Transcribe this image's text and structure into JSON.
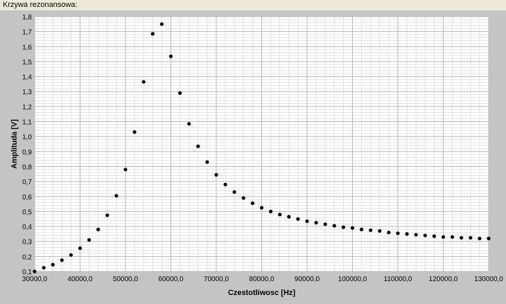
{
  "panel": {
    "title": "Krzywa rezonansowa:"
  },
  "colors": {
    "plot_bg": "#ffffff",
    "frame": "#c4c4c4",
    "grid_major": "#b8b8b8",
    "grid_minor": "#e2e2e2",
    "point": "#000000"
  },
  "chart_data": {
    "type": "scatter",
    "xlabel": "Czestotliwosc [Hz]",
    "ylabel": "Amplituda [V]",
    "xlim": [
      30000,
      130000
    ],
    "ylim": [
      0.1,
      1.8
    ],
    "xticks": [
      30000,
      40000,
      50000,
      60000,
      70000,
      80000,
      90000,
      100000,
      110000,
      120000,
      130000
    ],
    "xtick_labels": [
      "30000,0",
      "40000,0",
      "50000,0",
      "60000,0",
      "70000,0",
      "80000,0",
      "90000,0",
      "100000,0",
      "110000,0",
      "120000,0",
      "130000,0"
    ],
    "yticks": [
      0.1,
      0.2,
      0.3,
      0.4,
      0.5,
      0.6,
      0.7,
      0.8,
      0.9,
      1.0,
      1.1,
      1.2,
      1.3,
      1.4,
      1.5,
      1.6,
      1.7,
      1.8
    ],
    "ytick_labels": [
      "0,1",
      "0,2",
      "0,3",
      "0,4",
      "0,5",
      "0,6",
      "0,7",
      "0,8",
      "0,9",
      "1,0",
      "1,1",
      "1,2",
      "1,3",
      "1,4",
      "1,5",
      "1,6",
      "1,7",
      "1,8"
    ],
    "grid": true,
    "points": [
      [
        30000,
        0.1
      ],
      [
        32000,
        0.125
      ],
      [
        34000,
        0.145
      ],
      [
        36000,
        0.175
      ],
      [
        38000,
        0.21
      ],
      [
        40000,
        0.255
      ],
      [
        42000,
        0.31
      ],
      [
        44000,
        0.38
      ],
      [
        46000,
        0.475
      ],
      [
        48000,
        0.605
      ],
      [
        50000,
        0.78
      ],
      [
        52000,
        1.03
      ],
      [
        54000,
        1.365
      ],
      [
        56000,
        1.685
      ],
      [
        58000,
        1.75
      ],
      [
        60000,
        1.535
      ],
      [
        62000,
        1.29
      ],
      [
        64000,
        1.085
      ],
      [
        66000,
        0.935
      ],
      [
        68000,
        0.83
      ],
      [
        70000,
        0.745
      ],
      [
        72000,
        0.68
      ],
      [
        74000,
        0.63
      ],
      [
        76000,
        0.59
      ],
      [
        78000,
        0.555
      ],
      [
        80000,
        0.525
      ],
      [
        82000,
        0.5
      ],
      [
        84000,
        0.48
      ],
      [
        86000,
        0.465
      ],
      [
        88000,
        0.45
      ],
      [
        90000,
        0.435
      ],
      [
        92000,
        0.425
      ],
      [
        94000,
        0.415
      ],
      [
        96000,
        0.405
      ],
      [
        98000,
        0.395
      ],
      [
        100000,
        0.39
      ],
      [
        102000,
        0.38
      ],
      [
        104000,
        0.375
      ],
      [
        106000,
        0.37
      ],
      [
        108000,
        0.36
      ],
      [
        110000,
        0.355
      ],
      [
        112000,
        0.35
      ],
      [
        114000,
        0.345
      ],
      [
        116000,
        0.34
      ],
      [
        118000,
        0.335
      ],
      [
        120000,
        0.33
      ],
      [
        122000,
        0.33
      ],
      [
        124000,
        0.325
      ],
      [
        126000,
        0.325
      ],
      [
        128000,
        0.32
      ],
      [
        130000,
        0.32
      ]
    ]
  }
}
